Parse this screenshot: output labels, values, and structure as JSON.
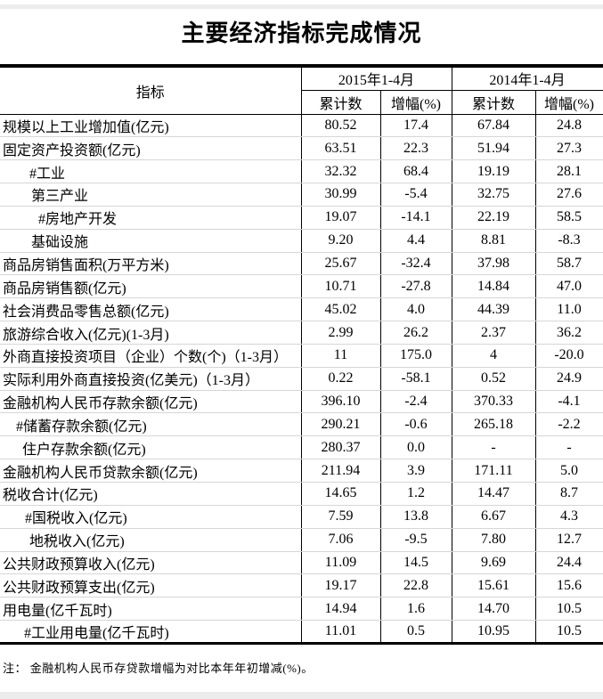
{
  "title": "主要经济指标完成情况",
  "note": "注： 金融机构人民币存贷款增幅为对比本年年初增减(%)。",
  "table": {
    "indicator_header": "指标",
    "col_groups": [
      {
        "label": "2015年1-4月",
        "sub": [
          "累计数",
          "增幅(%)"
        ]
      },
      {
        "label": "2014年1-4月",
        "sub": [
          "累计数",
          "增幅(%)"
        ]
      }
    ],
    "rows": [
      {
        "label": "规模以上工业增加值(亿元)",
        "indent": 3,
        "v2015": "80.52",
        "g2015": "17.4",
        "v2014": "67.84",
        "g2014": "24.8"
      },
      {
        "label": "固定资产投资额(亿元)",
        "indent": 3,
        "v2015": "63.51",
        "g2015": "22.3",
        "v2014": "51.94",
        "g2014": "27.3"
      },
      {
        "label": "#工业",
        "indent": 33,
        "v2015": "32.32",
        "g2015": "68.4",
        "v2014": "19.19",
        "g2014": "28.1"
      },
      {
        "label": "第三产业",
        "indent": 35,
        "v2015": "30.99",
        "g2015": "-5.4",
        "v2014": "32.75",
        "g2014": "27.6"
      },
      {
        "label": "#房地产开发",
        "indent": 43,
        "v2015": "19.07",
        "g2015": "-14.1",
        "v2014": "22.19",
        "g2014": "58.5"
      },
      {
        "label": "基础设施",
        "indent": 35,
        "v2015": "9.20",
        "g2015": "4.4",
        "v2014": "8.81",
        "g2014": "-8.3"
      },
      {
        "label": "商品房销售面积(万平方米)",
        "indent": 3,
        "v2015": "25.67",
        "g2015": "-32.4",
        "v2014": "37.98",
        "g2014": "58.7"
      },
      {
        "label": "商品房销售额(亿元)",
        "indent": 3,
        "v2015": "10.71",
        "g2015": "-27.8",
        "v2014": "14.84",
        "g2014": "47.0"
      },
      {
        "label": "社会消费品零售总额(亿元)",
        "indent": 3,
        "v2015": "45.02",
        "g2015": "4.0",
        "v2014": "44.39",
        "g2014": "11.0"
      },
      {
        "label": "旅游综合收入(亿元)(1-3月)",
        "indent": 3,
        "v2015": "2.99",
        "g2015": "26.2",
        "v2014": "2.37",
        "g2014": "36.2"
      },
      {
        "label": "外商直接投资项目（企业）个数(个)（1-3月）",
        "indent": 3,
        "v2015": "11",
        "g2015": "175.0",
        "v2014": "4",
        "g2014": "-20.0"
      },
      {
        "label": "实际利用外商直接投资(亿美元)（1-3月）",
        "indent": 3,
        "v2015": "0.22",
        "g2015": "-58.1",
        "v2014": "0.52",
        "g2014": "24.9"
      },
      {
        "label": "金融机构人民币存款余额(亿元)",
        "indent": 3,
        "v2015": "396.10",
        "g2015": "-2.4",
        "v2014": "370.33",
        "g2014": "-4.1"
      },
      {
        "label": "#储蓄存款余额(亿元)",
        "indent": 18,
        "v2015": "290.21",
        "g2015": "-0.6",
        "v2014": "265.18",
        "g2014": "-2.2"
      },
      {
        "label": "住户存款余额(亿元)",
        "indent": 25,
        "v2015": "280.37",
        "g2015": "0.0",
        "v2014": "-",
        "g2014": "-"
      },
      {
        "label": "金融机构人民币贷款余额(亿元)",
        "indent": 3,
        "v2015": "211.94",
        "g2015": "3.9",
        "v2014": "171.11",
        "g2014": "5.0"
      },
      {
        "label": "税收合计(亿元)",
        "indent": 3,
        "v2015": "14.65",
        "g2015": "1.2",
        "v2014": "14.47",
        "g2014": "8.7"
      },
      {
        "label": "#国税收入(亿元)",
        "indent": 28,
        "v2015": "7.59",
        "g2015": "13.8",
        "v2014": "6.67",
        "g2014": "4.3"
      },
      {
        "label": "地税收入(亿元)",
        "indent": 33,
        "v2015": "7.06",
        "g2015": "-9.5",
        "v2014": "7.80",
        "g2014": "12.7"
      },
      {
        "label": "公共财政预算收入(亿元)",
        "indent": 3,
        "v2015": "11.09",
        "g2015": "14.5",
        "v2014": "9.69",
        "g2014": "24.4"
      },
      {
        "label": "公共财政预算支出(亿元)",
        "indent": 3,
        "v2015": "19.17",
        "g2015": "22.8",
        "v2014": "15.61",
        "g2014": "15.6"
      },
      {
        "label": "用电量(亿千瓦时)",
        "indent": 3,
        "v2015": "14.94",
        "g2015": "1.6",
        "v2014": "14.70",
        "g2014": "10.5"
      },
      {
        "label": "#工业用电量(亿千瓦时)",
        "indent": 27,
        "v2015": "11.01",
        "g2015": "0.5",
        "v2014": "10.95",
        "g2014": "10.5"
      }
    ]
  }
}
